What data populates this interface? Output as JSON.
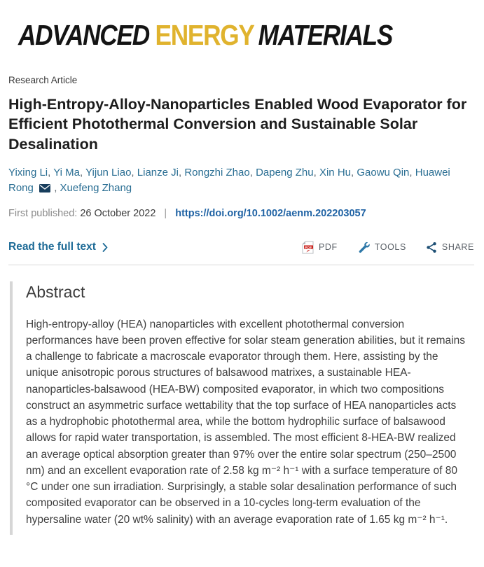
{
  "journal": {
    "logo": {
      "part1": "ADVANCED",
      "part2": "ENERGY",
      "part3": "MATERIALS"
    }
  },
  "article": {
    "type_label": "Research Article",
    "title": "High-Entropy-Alloy-Nanoparticles Enabled Wood Evaporator for Efficient Photothermal Conversion and Sustainable Solar Desalination",
    "authors": [
      "Yixing Li",
      "Yi Ma",
      "Yijun Liao",
      "Lianze Ji",
      "Rongzhi Zhao",
      "Dapeng Zhu",
      "Xin Hu",
      "Gaowu Qin",
      "Huawei Rong",
      "Xuefeng Zhang"
    ],
    "corresponding_author": "Huawei Rong",
    "published": {
      "label": "First published:",
      "date": "26 October 2022",
      "separator": "|",
      "doi": "https://doi.org/10.1002/aenm.202203057"
    }
  },
  "toolbar": {
    "read_full_text_label": "Read the full text",
    "pdf_label": "PDF",
    "tools_label": "TOOLS",
    "share_label": "SHARE"
  },
  "abstract": {
    "heading": "Abstract",
    "body": "High-entropy-alloy (HEA) nanoparticles with excellent photothermal conversion performances have been proven effective for solar steam generation abilities, but it remains a challenge to fabricate a macroscale evaporator through them. Here, assisting by the unique anisotropic porous structures of balsawood matrixes, a sustainable HEA-nanoparticles-balsawood (HEA-BW) composited evaporator, in which two compositions construct an asymmetric surface wettability that the top surface of HEA nanoparticles acts as a hydrophobic photothermal area, while the bottom hydrophilic surface of balsawood allows for rapid water transportation, is assembled. The most efficient 8-HEA-BW realized an average optical absorption greater than 97% over the entire solar spectrum (250–2500 nm) and an excellent evaporation rate of 2.58 kg m⁻² h⁻¹ with a surface temperature of 80 °C under one sun irradiation. Surprisingly, a stable solar desalination performance of such composited evaporator can be observed in a 10-cycles long-term evaluation of the hypersaline water (20 wt% salinity) with an average evaporation rate of 1.65 kg m⁻² h⁻¹."
  },
  "colors": {
    "logo_accent_gold": "#e0b32e",
    "author_link_teal": "#2a6e93",
    "doi_link_blue": "#2063a4",
    "read_full_text_teal": "#1d6a96",
    "pdf_icon_red": "#c9211b",
    "tools_icon_blue": "#2e78a8",
    "share_icon_navy": "#1d4f74",
    "mail_icon_navy": "#173d5c",
    "divider_gray": "#d9d9d9"
  }
}
